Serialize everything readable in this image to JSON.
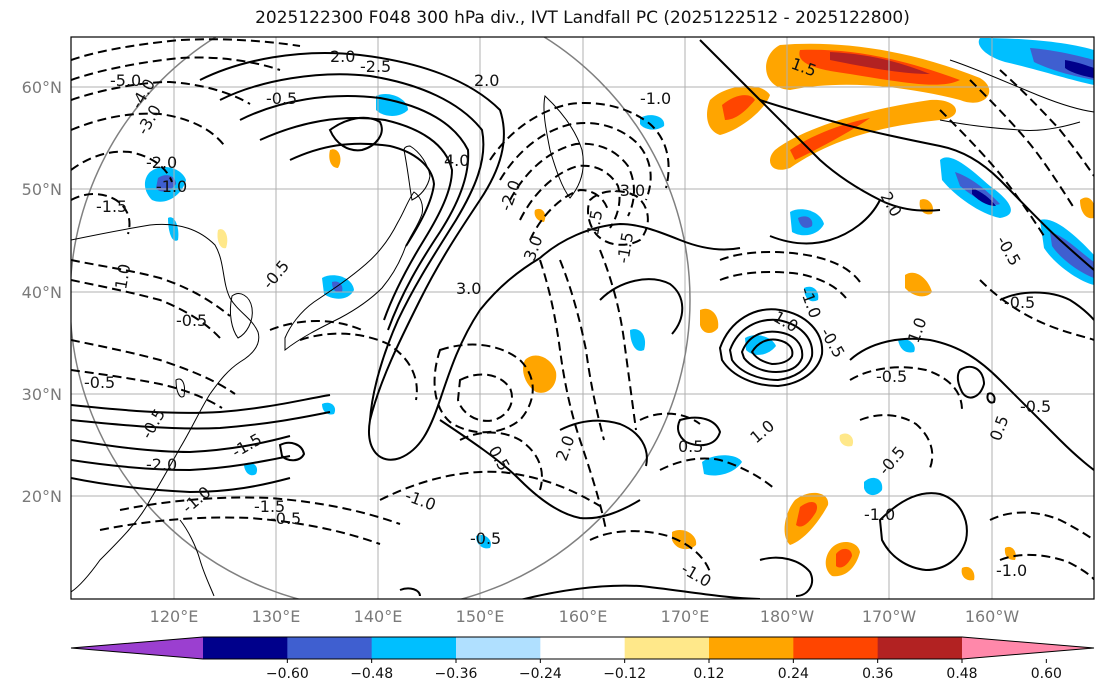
{
  "title": "2025122300 F048 300 hPa div., IVT Landfall PC (2025122512 - 2025122800)",
  "lat_labels": [
    "20°N",
    "30°N",
    "40°N",
    "50°N",
    "60°N"
  ],
  "lon_labels": [
    "120°E",
    "130°E",
    "140°E",
    "150°E",
    "160°E",
    "170°E",
    "180°W",
    "170°W",
    "160°W"
  ],
  "colorbar": {
    "ticks": [
      "−0.60",
      "−0.48",
      "−0.36",
      "−0.24",
      "−0.12",
      "0.12",
      "0.24",
      "0.36",
      "0.48",
      "0.60"
    ],
    "colors": [
      "#9b3fd0",
      "#00008b",
      "#3f5fd0",
      "#00bfff",
      "#b0e0ff",
      "#ffffff",
      "#ffe88a",
      "#ffa500",
      "#ff4500",
      "#b22222",
      "#ff88aa"
    ]
  },
  "contour_labels": [
    {
      "text": "-5.0"
    },
    {
      "text": "-4.0"
    },
    {
      "text": "-3.0"
    },
    {
      "text": "-2.0"
    },
    {
      "text": "-1.0"
    },
    {
      "text": "-1.5"
    },
    {
      "text": "2.0"
    },
    {
      "text": "-2.5"
    },
    {
      "text": "-0.5"
    },
    {
      "text": "2.0"
    },
    {
      "text": "-1.0"
    },
    {
      "text": "4.0"
    },
    {
      "text": "-2.0"
    },
    {
      "text": "-3.0"
    },
    {
      "text": "3.0"
    },
    {
      "text": "-1.5"
    },
    {
      "text": "3.0"
    },
    {
      "text": "-0.5"
    },
    {
      "text": "1.0"
    },
    {
      "text": "-0.5"
    },
    {
      "text": "-0.5"
    },
    {
      "text": "-1.0"
    },
    {
      "text": "1.0"
    },
    {
      "text": "-0.5"
    },
    {
      "text": "-0.5"
    },
    {
      "text": "2.0"
    },
    {
      "text": "-1.5"
    },
    {
      "text": "-0.5"
    },
    {
      "text": "-0.5"
    },
    {
      "text": "-1.0"
    },
    {
      "text": "-2.0"
    },
    {
      "text": "-1.5"
    },
    {
      "text": "-1.0"
    },
    {
      "text": "-0.5"
    },
    {
      "text": "0.5"
    },
    {
      "text": "1.0"
    },
    {
      "text": "-1.0"
    },
    {
      "text": "1.5"
    },
    {
      "text": "0.5"
    },
    {
      "text": "-0.5"
    },
    {
      "text": "-0.5"
    },
    {
      "text": "0.5"
    },
    {
      "text": "2.0"
    },
    {
      "text": "-0.5"
    },
    {
      "text": "1.0"
    },
    {
      "text": "-0.5"
    },
    {
      "text": "-1.0"
    },
    {
      "text": "-1.0"
    },
    {
      "text": "1.5"
    }
  ]
}
